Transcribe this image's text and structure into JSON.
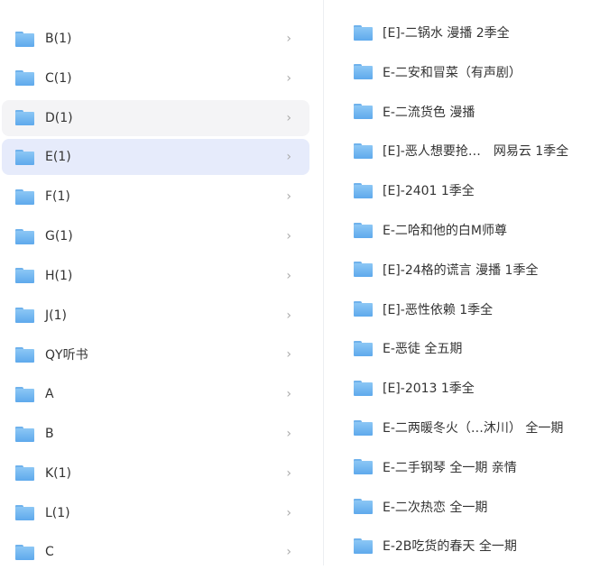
{
  "left_list": [
    {
      "label": "B(1)"
    },
    {
      "label": "C(1)"
    },
    {
      "label": "D(1)",
      "state": "hover"
    },
    {
      "label": "E(1)",
      "state": "selected"
    },
    {
      "label": "F(1)"
    },
    {
      "label": "G(1)"
    },
    {
      "label": "H(1)"
    },
    {
      "label": "J(1)"
    },
    {
      "label": "QY听书"
    },
    {
      "label": "A"
    },
    {
      "label": "B"
    },
    {
      "label": "K(1)"
    },
    {
      "label": "L(1)"
    },
    {
      "label": "C"
    }
  ],
  "chevron": "›",
  "right_list": [
    "[E]-二锅水 漫播 2季全",
    "E-二安和冒菜（有声剧）",
    "E-二流货色 漫播",
    "[E]-恶人想要抢…　网易云 1季全",
    "[E]-2401 1季全",
    "E-二哈和他的白M师尊",
    "[E]-24格的谎言 漫播 1季全",
    "[E]-恶性依赖 1季全",
    "E-恶徒 全五期",
    "[E]-2013 1季全",
    "E-二两暖冬火（…沐川） 全一期",
    "E-二手钢琴 全一期 亲情",
    "E-二次热恋 全一期",
    "E-2B吃货的春天 全一期"
  ],
  "colors": {
    "selected_bg": "#e6ebfb",
    "hover_bg": "#f4f4f6",
    "folder": "#6fb2ec"
  }
}
